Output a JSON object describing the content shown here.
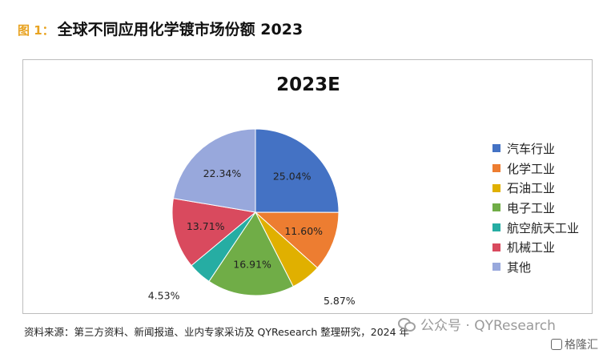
{
  "figure": {
    "label": "图 1：",
    "title": "全球不同应用化学镀市场份额 2023"
  },
  "chart_data": {
    "type": "pie",
    "title": "2023E",
    "categories": [
      "汽车行业",
      "化学工业",
      "石油工业",
      "电子工业",
      "航空航天工业",
      "机械工业",
      "其他"
    ],
    "values": [
      25.04,
      11.6,
      5.87,
      16.91,
      4.53,
      13.71,
      22.34
    ],
    "data_labels": [
      "25.04%",
      "11.60%",
      "5.87%",
      "16.91%",
      "4.53%",
      "13.71%",
      "22.34%"
    ],
    "colors": [
      "#4472c4",
      "#ed7d31",
      "#e0b000",
      "#70ad47",
      "#26ada3",
      "#d94a5e",
      "#98a8dc"
    ],
    "legend_position": "right"
  },
  "source": "资料来源：第三方资料、新闻报道、业内专家采访及 QYResearch 整理研究，2024 年",
  "watermark": "公众号 · QYResearch",
  "brand": "格隆汇"
}
